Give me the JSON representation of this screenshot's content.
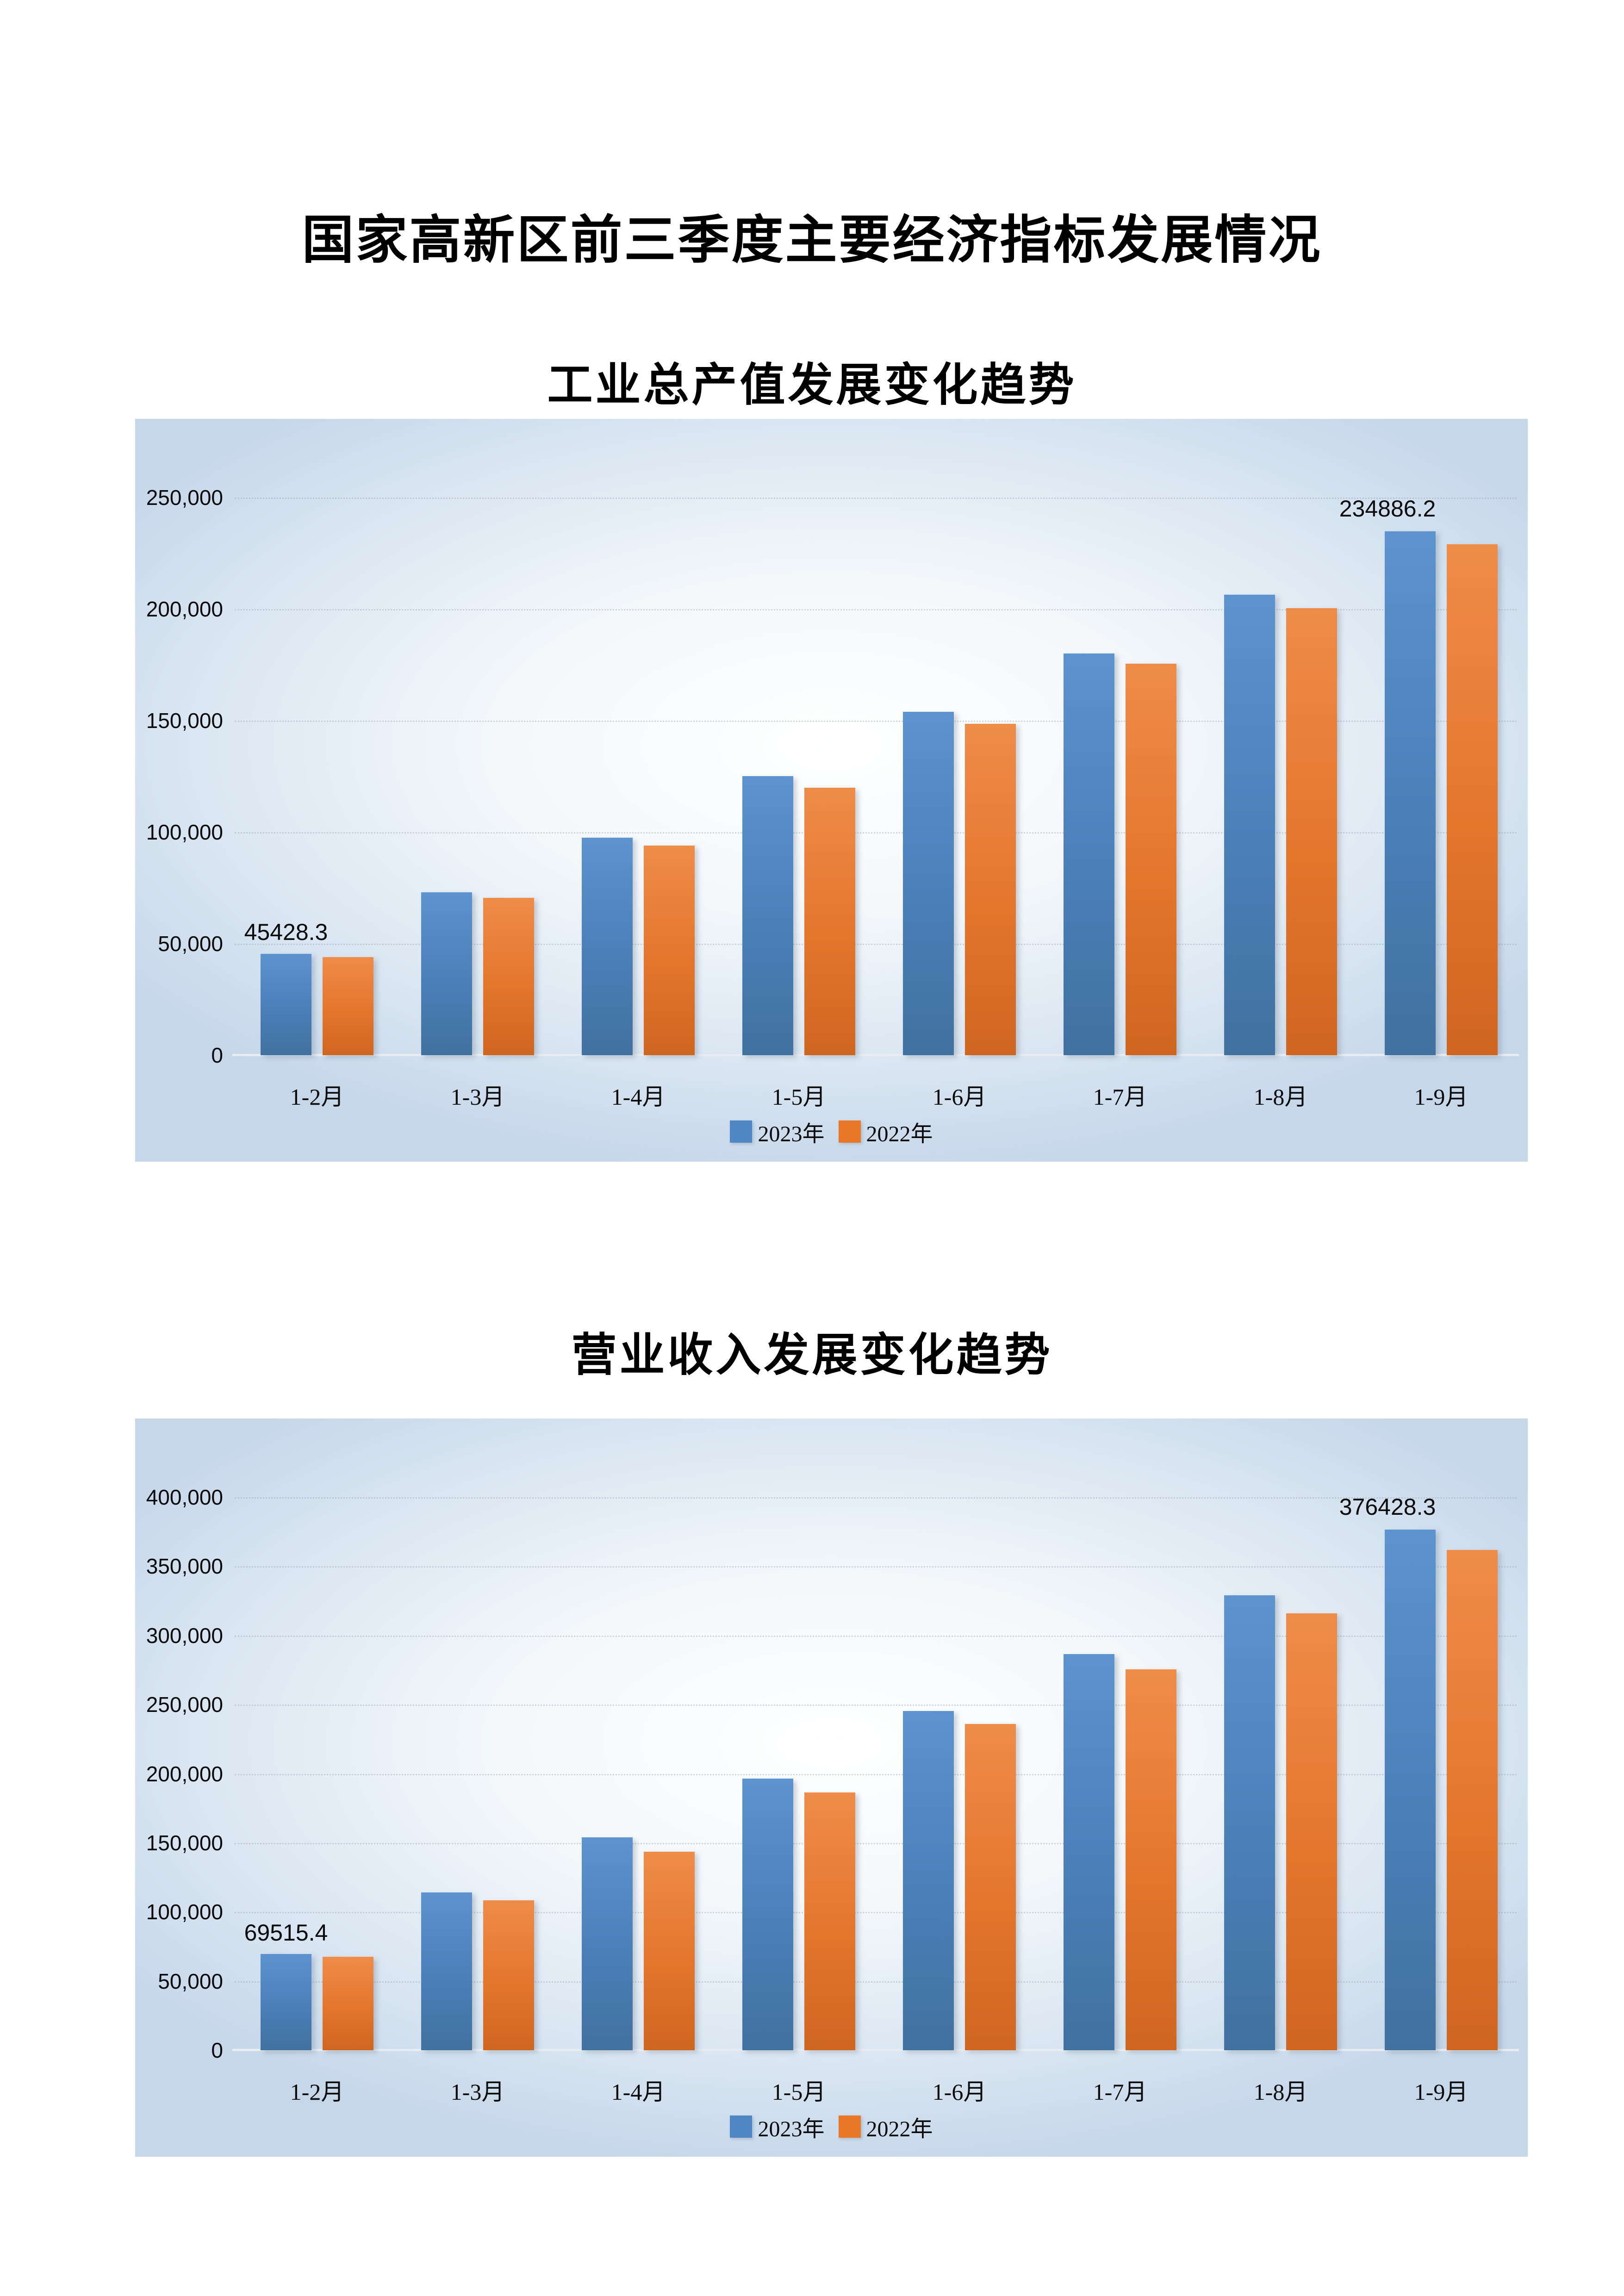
{
  "page": {
    "title": "国家高新区前三季度主要经济指标发展情况"
  },
  "colors": {
    "series_2023_blue": "#4b80bc",
    "series_2022_orange": "#e4762c",
    "chart_background_edge": "#c6d7ea",
    "chart_background_center": "#ffffff",
    "text": "#000000"
  },
  "chart_data": [
    {
      "type": "bar",
      "title": "工业总产值发展变化趋势",
      "categories": [
        "1-2月",
        "1-3月",
        "1-4月",
        "1-5月",
        "1-6月",
        "1-7月",
        "1-8月",
        "1-9月"
      ],
      "series": [
        {
          "name": "2023年",
          "values": [
            45428.3,
            73000,
            97500,
            125000,
            154000,
            180000,
            206500,
            234886.2
          ]
        },
        {
          "name": "2022年",
          "values": [
            44000,
            70500,
            94000,
            120000,
            148500,
            175500,
            200500,
            229000
          ]
        }
      ],
      "ylim": [
        0,
        250000
      ],
      "y_ticks": [
        "250,000",
        "200,000",
        "150,000",
        "100,000",
        "50,000",
        "0"
      ],
      "grid": true,
      "legend_position": "bottom",
      "data_labels": {
        "first": "45428.3",
        "last": "234886.2"
      }
    },
    {
      "type": "bar",
      "title": "营业收入发展变化趋势",
      "categories": [
        "1-2月",
        "1-3月",
        "1-4月",
        "1-5月",
        "1-6月",
        "1-7月",
        "1-8月",
        "1-9月"
      ],
      "series": [
        {
          "name": "2023年",
          "values": [
            69515.4,
            114000,
            154000,
            196500,
            245500,
            286500,
            329000,
            376428.3
          ]
        },
        {
          "name": "2022年",
          "values": [
            67500,
            108500,
            143500,
            186500,
            236000,
            275500,
            316000,
            362000
          ]
        }
      ],
      "ylim": [
        0,
        400000
      ],
      "y_ticks": [
        "400,000",
        "350,000",
        "300,000",
        "250,000",
        "200,000",
        "150,000",
        "100,000",
        "50,000",
        "0"
      ],
      "grid": true,
      "legend_position": "bottom",
      "data_labels": {
        "first": "69515.4",
        "last": "376428.3"
      }
    }
  ]
}
